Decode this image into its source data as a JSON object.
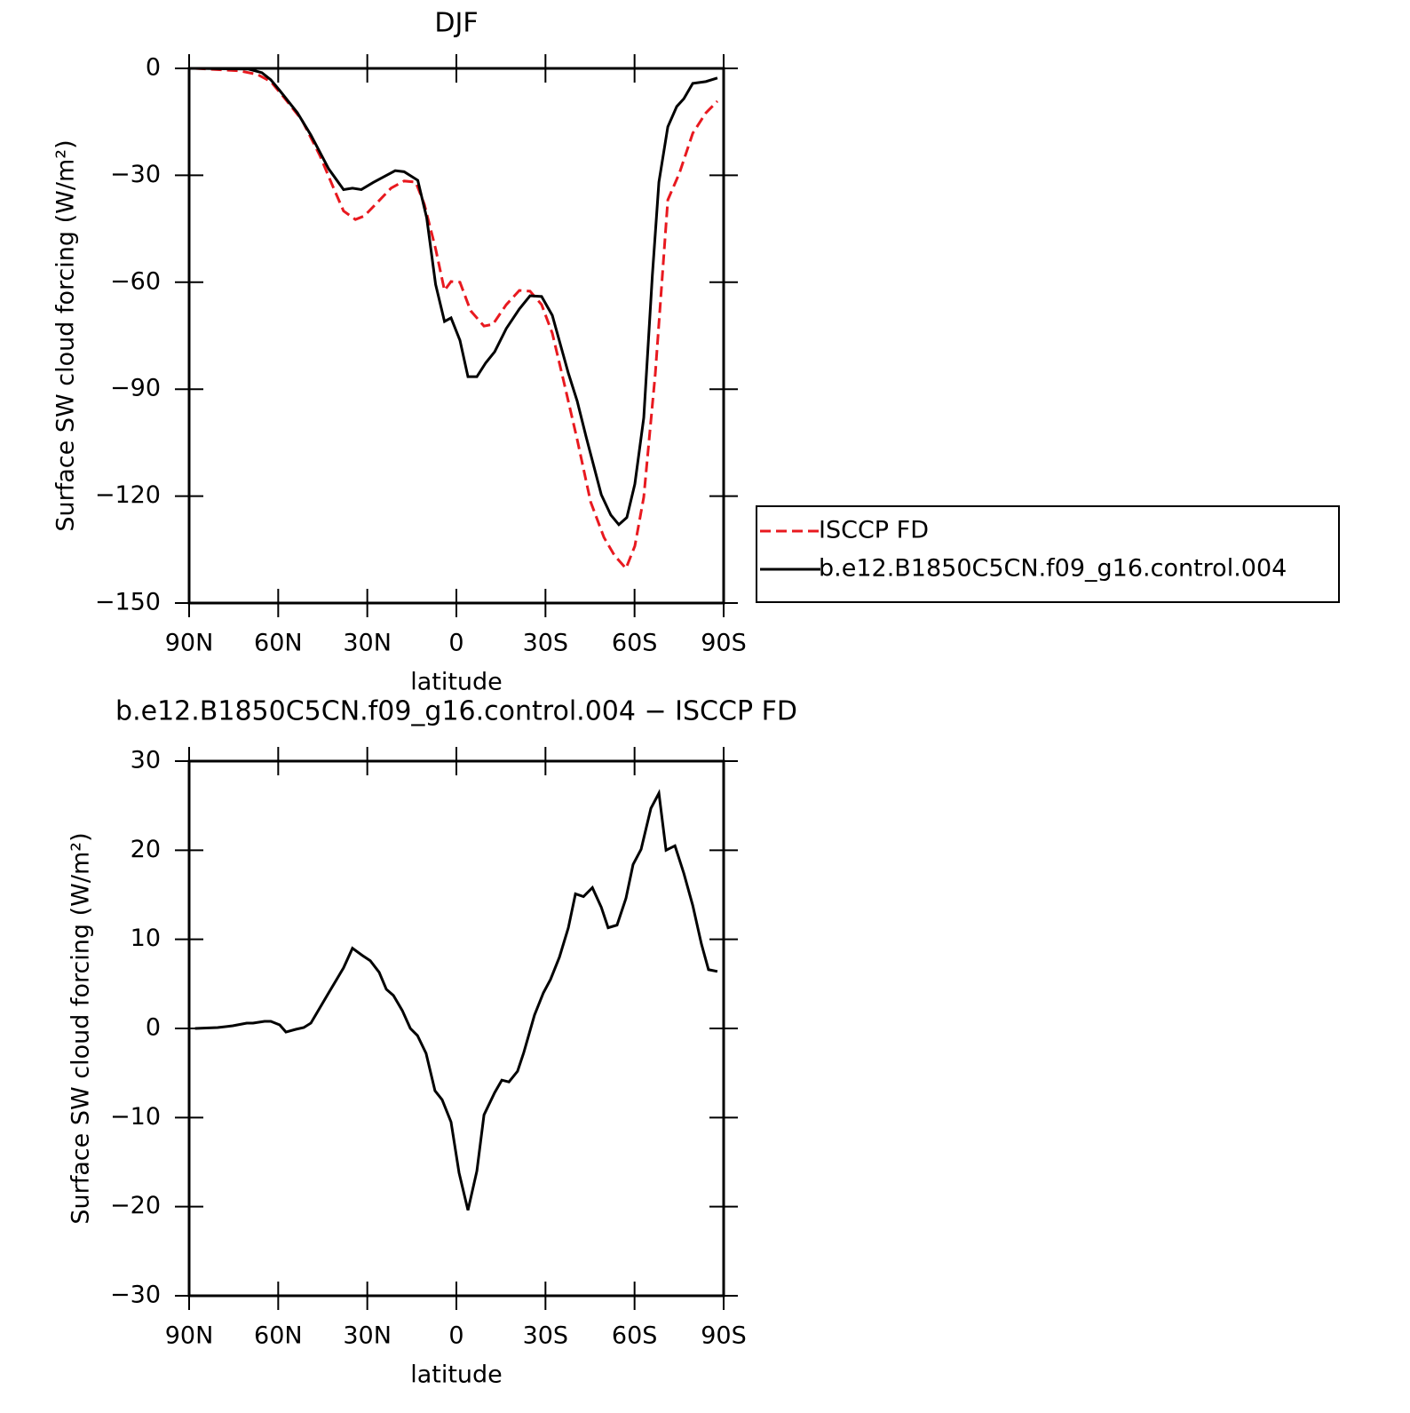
{
  "chart_data": [
    {
      "type": "line",
      "title": "DJF",
      "xlabel": "latitude",
      "ylabel": "Surface SW cloud forcing (W/m²)",
      "xlim": [
        90,
        -90
      ],
      "xticks": [
        {
          "value": 90,
          "label": "90N"
        },
        {
          "value": 60,
          "label": "60N"
        },
        {
          "value": 30,
          "label": "30N"
        },
        0,
        {
          "value": -30,
          "label": "30S"
        },
        {
          "value": -60,
          "label": "60S"
        },
        {
          "value": -90,
          "label": "90S"
        }
      ],
      "ylim": [
        -150,
        0
      ],
      "yticks": [
        {
          "value": -150,
          "label": "−150"
        },
        {
          "value": -120,
          "label": "−120"
        },
        {
          "value": -90,
          "label": "−90"
        },
        {
          "value": -60,
          "label": "−60"
        },
        {
          "value": -30,
          "label": "−30"
        },
        0
      ],
      "legend": "outside-right",
      "series": [
        {
          "name": "ISCCP FD",
          "color": "#e8191f",
          "linestyle": "dashed",
          "x": [
            88,
            73,
            67,
            62.5,
            58,
            52,
            46,
            41.6,
            38,
            34,
            31,
            26.6,
            22,
            17.6,
            13.7,
            10.8,
            7,
            4,
            1.8,
            -1.2,
            -4.8,
            -9.3,
            -12.3,
            -16.8,
            -21.2,
            -24.8,
            -28.7,
            -32.3,
            -36.2,
            -40.7,
            -45.2,
            -49.7,
            -53.2,
            -57.1,
            -60.1,
            -63.1,
            -67,
            -71.2,
            -75.1,
            -79.6,
            -84,
            -87.9
          ],
          "values": [
            0,
            -0.7,
            -1.7,
            -3.7,
            -8.2,
            -14.5,
            -24.4,
            -33.1,
            -40,
            -42.4,
            -41.4,
            -37.6,
            -33.6,
            -31.6,
            -31.9,
            -38.1,
            -50.6,
            -62.3,
            -59.8,
            -60,
            -68,
            -72.3,
            -71.8,
            -66.3,
            -62.3,
            -62.5,
            -66.3,
            -74.3,
            -88,
            -104.2,
            -121.6,
            -131.6,
            -136.6,
            -140.3,
            -134,
            -120.3,
            -85.5,
            -36.9,
            -29.4,
            -18.2,
            -12.5,
            -9.2
          ]
        },
        {
          "name": "b.e12.B1850C5CN.f09_g16.control.004",
          "color": "#000000",
          "linestyle": "solid",
          "x": [
            88,
            70,
            65.5,
            62.5,
            59.5,
            53.5,
            49,
            43,
            38,
            35,
            32,
            28,
            20.6,
            17.6,
            13,
            10,
            7,
            4,
            1.8,
            -1.2,
            -3.9,
            -6.9,
            -9.9,
            -12.9,
            -16.8,
            -21.2,
            -24.8,
            -28.7,
            -32.3,
            -37.7,
            -40.7,
            -43.7,
            -48.8,
            -52,
            -54.7,
            -57.4,
            -60.1,
            -63.1,
            -66,
            -68.2,
            -71.2,
            -74.2,
            -76.6,
            -79.6,
            -84,
            -87.9
          ],
          "values": [
            0,
            -0.2,
            -1.2,
            -3.2,
            -6.2,
            -12.5,
            -18.7,
            -28.2,
            -34,
            -33.6,
            -34,
            -32,
            -28.7,
            -29,
            -31.4,
            -41.9,
            -60.6,
            -71,
            -70,
            -76.3,
            -86.5,
            -86.5,
            -82.6,
            -79.5,
            -73,
            -67.5,
            -63.8,
            -64,
            -69.3,
            -85.5,
            -93.4,
            -103.4,
            -119.6,
            -125.3,
            -128,
            -126,
            -116.6,
            -98,
            -58,
            -31.9,
            -16.4,
            -10.7,
            -8.5,
            -4.2,
            -3.7,
            -2.7
          ]
        }
      ]
    },
    {
      "type": "line",
      "title": "b.e12.B1850C5CN.f09_g16.control.004 − ISCCP FD",
      "xlabel": "latitude",
      "ylabel": "Surface SW cloud forcing (W/m²)",
      "xlim": [
        90,
        -90
      ],
      "xticks": [
        {
          "value": 90,
          "label": "90N"
        },
        {
          "value": 60,
          "label": "60N"
        },
        {
          "value": 30,
          "label": "30N"
        },
        0,
        {
          "value": -30,
          "label": "30S"
        },
        {
          "value": -60,
          "label": "60S"
        },
        {
          "value": -90,
          "label": "90S"
        }
      ],
      "ylim": [
        -30,
        30
      ],
      "yticks": [
        {
          "value": -30,
          "label": "−30"
        },
        {
          "value": -20,
          "label": "−20"
        },
        {
          "value": -10,
          "label": "−10"
        },
        0,
        10,
        20,
        30
      ],
      "series": [
        {
          "color": "#000000",
          "linestyle": "solid",
          "x": [
            88,
            80.4,
            75.3,
            70.6,
            68.5,
            64.6,
            62.5,
            59.5,
            57.4,
            54.1,
            51.4,
            49,
            43,
            38,
            35,
            31.7,
            29,
            26,
            23.6,
            21.2,
            18.2,
            15.5,
            13.1,
            10.2,
            7.2,
            4.8,
            1.8,
            -0.9,
            -3.9,
            -6.9,
            -9.3,
            -12.9,
            -15.3,
            -17.7,
            -20.6,
            -22.7,
            -26.3,
            -29.3,
            -31.7,
            -34.7,
            -37.7,
            -40.1,
            -42.8,
            -45.8,
            -48.8,
            -51.1,
            -54.1,
            -57.1,
            -59.5,
            -62.2,
            -65.5,
            -68.2,
            -70.6,
            -73.6,
            -76.6,
            -79.6,
            -82.5,
            -84.9,
            -87.9
          ],
          "values": [
            0,
            0.1,
            0.3,
            0.6,
            0.6,
            0.8,
            0.8,
            0.4,
            -0.4,
            -0.1,
            0.1,
            0.6,
            4,
            6.8,
            9,
            8.2,
            7.6,
            6.3,
            4.4,
            3.7,
            2,
            0,
            -0.8,
            -2.8,
            -7,
            -8,
            -10.5,
            -16.2,
            -20.4,
            -16,
            -9.7,
            -7.2,
            -5.8,
            -6,
            -4.8,
            -2.7,
            1.5,
            4,
            5.5,
            8,
            11.3,
            15.1,
            14.8,
            15.8,
            13.6,
            11.3,
            11.6,
            14.6,
            18.4,
            20.1,
            24.7,
            26.4,
            20,
            20.5,
            17.4,
            13.8,
            9.5,
            6.6,
            6.4
          ]
        }
      ]
    }
  ]
}
